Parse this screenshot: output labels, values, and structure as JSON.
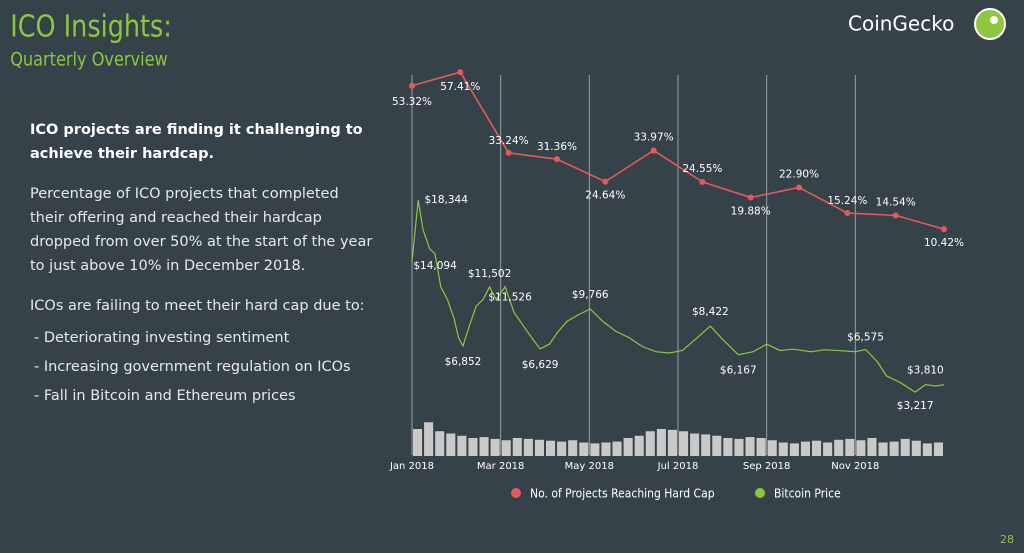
{
  "header": {
    "title": "ICO Insights:",
    "subtitle": "Quarterly Overview",
    "brand": "CoinGecko"
  },
  "body": {
    "heading": "ICO projects are finding it challenging to achieve their hardcap.",
    "paragraphs": [
      "Percentage of ICO projects that completed their offering and reached their hardcap dropped from over 50% at the start of the year to just above 10% in December 2018.",
      "ICOs are failing to meet their hard cap due to:"
    ],
    "bullets": [
      "- Deteriorating investing sentiment",
      "- Increasing government regulation on ICOs",
      "- Fall in Bitcoin and Ethereum prices"
    ]
  },
  "page_number": "28",
  "chart_data": {
    "type": "line",
    "xlim": [
      0,
      12
    ],
    "xticks": [
      {
        "value": 0,
        "label": "Jan 2018"
      },
      {
        "value": 2,
        "label": "Mar 2018"
      },
      {
        "value": 4,
        "label": "May 2018"
      },
      {
        "value": 6,
        "label": "Jul 2018"
      },
      {
        "value": 8,
        "label": "Sep 2018"
      },
      {
        "value": 10,
        "label": "Nov 2018"
      }
    ],
    "ylim": [
      0,
      70
    ],
    "y2lim": [
      0,
      20000
    ],
    "grid": true,
    "series": [
      {
        "name": "No. of Projects Reaching Hard Cap",
        "color": "#e45a5a",
        "markers": true,
        "x": [
          0,
          1.09,
          2.18,
          3.27,
          4.36,
          5.45,
          6.55,
          7.64,
          8.73,
          9.82,
          10.91,
          12
        ],
        "values": [
          53.32,
          57.41,
          33.24,
          31.36,
          24.64,
          33.97,
          24.55,
          19.88,
          22.9,
          15.24,
          14.54,
          10.42
        ],
        "value_labels": [
          "53.32%",
          "57.41%",
          "33.24%",
          "31.36%",
          "24.64%",
          "33.97%",
          "24.55%",
          "19.88%",
          "22.90%",
          "15.24%",
          "14.54%",
          "10.42%"
        ]
      },
      {
        "name": "Bitcoin Price",
        "color": "#8dc63f",
        "markers": false,
        "axis": "y2",
        "x": [
          0,
          0.14,
          0.25,
          0.4,
          0.52,
          0.65,
          0.8,
          0.95,
          1.05,
          1.15,
          1.3,
          1.45,
          1.6,
          1.75,
          1.9,
          2.1,
          2.3,
          2.5,
          2.7,
          2.89,
          3.1,
          3.3,
          3.5,
          3.75,
          4.02,
          4.3,
          4.6,
          4.9,
          5.2,
          5.5,
          5.8,
          6.1,
          6.4,
          6.73,
          7.0,
          7.36,
          7.7,
          8.0,
          8.3,
          8.6,
          9.0,
          9.3,
          9.6,
          10.0,
          10.23,
          10.5,
          10.7,
          11.0,
          11.35,
          11.58,
          11.8,
          12
        ],
        "values": [
          13500,
          18344,
          16000,
          14500,
          14094,
          11500,
          10500,
          9000,
          7500,
          6852,
          8500,
          10000,
          10500,
          11502,
          10500,
          11526,
          9500,
          8500,
          7500,
          6629,
          7000,
          8000,
          8800,
          9300,
          9766,
          8800,
          8000,
          7500,
          6800,
          6400,
          6300,
          6500,
          7400,
          8422,
          7400,
          6167,
          6400,
          7000,
          6500,
          6600,
          6400,
          6550,
          6500,
          6400,
          6575,
          5600,
          4500,
          4000,
          3217,
          3810,
          3700,
          3800
        ],
        "value_labels": [
          null,
          "$18,344",
          null,
          null,
          "$14,094",
          null,
          null,
          null,
          null,
          "$6,852",
          null,
          null,
          null,
          "$11,502",
          null,
          "$11,526",
          null,
          null,
          null,
          "$6,629",
          null,
          null,
          null,
          null,
          "$9,766",
          null,
          null,
          null,
          null,
          null,
          null,
          null,
          null,
          "$8,422",
          null,
          "$6,167",
          null,
          null,
          null,
          null,
          null,
          null,
          null,
          null,
          "$6,575",
          null,
          null,
          null,
          "$3,217",
          "$3,810",
          null,
          null
        ]
      }
    ],
    "volume": {
      "color": "#c9c9c9",
      "values": [
        60,
        75,
        55,
        50,
        45,
        40,
        42,
        38,
        35,
        40,
        38,
        36,
        34,
        32,
        35,
        30,
        28,
        30,
        32,
        40,
        45,
        55,
        60,
        58,
        55,
        50,
        48,
        45,
        40,
        38,
        42,
        40,
        35,
        30,
        28,
        32,
        34,
        30,
        36,
        38,
        35,
        40,
        30,
        32,
        38,
        34,
        28,
        30
      ]
    },
    "legend": "bottom"
  }
}
